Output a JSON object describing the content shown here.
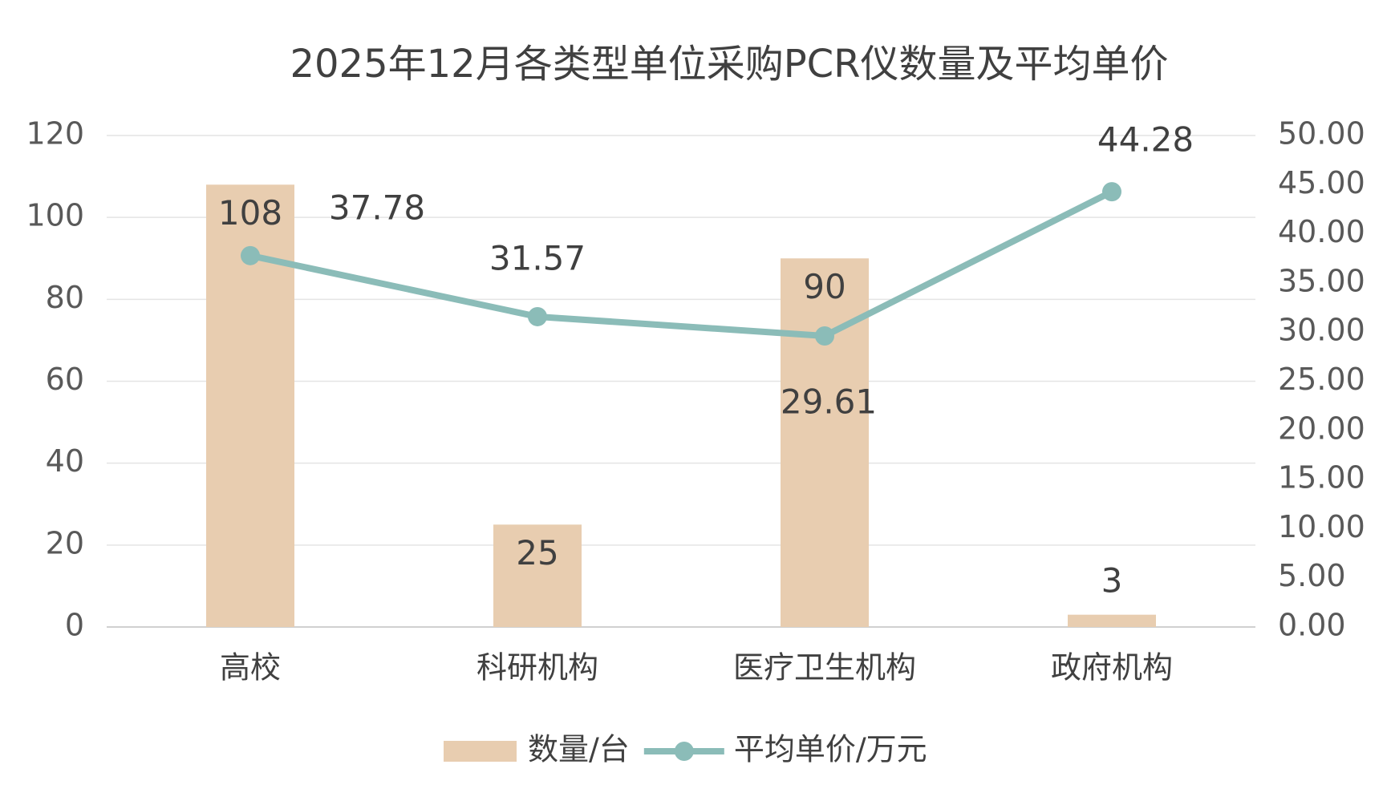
{
  "chart_data": {
    "type": "bar",
    "title": "2025年12月各类型单位采购PCR仪数量及平均单价",
    "categories": [
      "高校",
      "科研机构",
      "医疗卫生机构",
      "政府机构"
    ],
    "series": [
      {
        "name": "数量/台",
        "type": "bar",
        "color": "#e8cdb0",
        "values": [
          108,
          25,
          90,
          3
        ]
      },
      {
        "name": "平均单价/万元",
        "type": "line",
        "color": "#8bbcb8",
        "axis": "y2",
        "values": [
          37.78,
          31.57,
          29.61,
          44.28
        ]
      }
    ],
    "ylim": [
      0,
      120
    ],
    "yticks": [
      0,
      20,
      40,
      60,
      80,
      100,
      120
    ],
    "y2lim": [
      0,
      50
    ],
    "y2ticks": [
      {
        "value": 0,
        "label": "0.00"
      },
      {
        "value": 5,
        "label": "5.00"
      },
      {
        "value": 10,
        "label": "10.00"
      },
      {
        "value": 15,
        "label": "15.00"
      },
      {
        "value": 20,
        "label": "20.00"
      },
      {
        "value": 25,
        "label": "25.00"
      },
      {
        "value": 30,
        "label": "30.00"
      },
      {
        "value": 35,
        "label": "35.00"
      },
      {
        "value": 40,
        "label": "40.00"
      },
      {
        "value": 45,
        "label": "45.00"
      },
      {
        "value": 50,
        "label": "50.00"
      }
    ],
    "grid": true,
    "legend": "bottom"
  }
}
